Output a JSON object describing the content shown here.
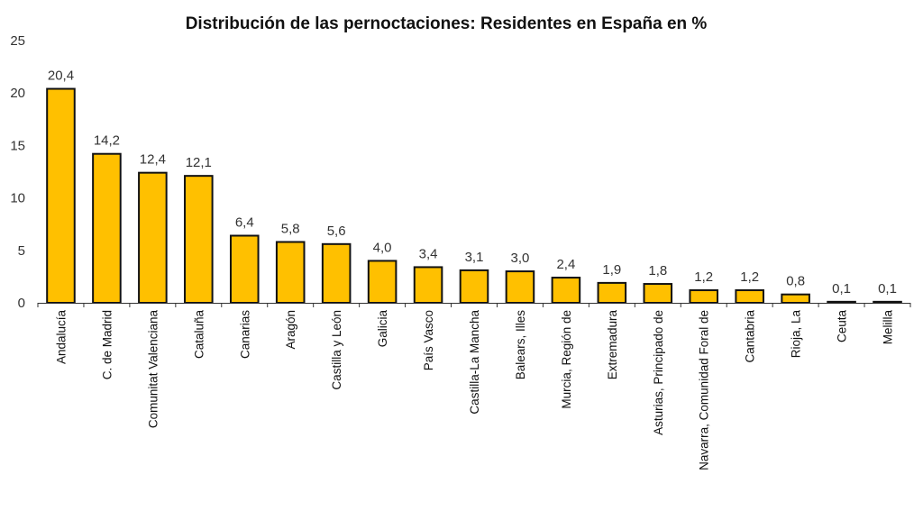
{
  "chart_data": {
    "type": "bar",
    "title": "Distribución de las pernoctaciones: Residentes en España en %",
    "xlabel": "",
    "ylabel": "",
    "ylim": [
      0,
      25
    ],
    "yticks": [
      0,
      5,
      10,
      15,
      20,
      25
    ],
    "grid": false,
    "legend": "none",
    "bar_color": "#FFC000",
    "bar_edge_color": "#111111",
    "decimal_separator": ",",
    "categories": [
      "Andalucía",
      "C. de Madrid",
      "Comunitat Valenciana",
      "Cataluña",
      "Canarias",
      "Aragón",
      "Castilla y León",
      "Galicia",
      "País Vasco",
      "Castilla-La Mancha",
      "Balears, Illes",
      "Murcia, Región de",
      "Extremadura",
      "Asturias, Principado de",
      "Navarra, Comunidad Foral de",
      "Cantabria",
      "Rioja, La",
      "Ceuta",
      "Melilla"
    ],
    "values": [
      20.4,
      14.2,
      12.4,
      12.1,
      6.4,
      5.8,
      5.6,
      4.0,
      3.4,
      3.1,
      3.0,
      2.4,
      1.9,
      1.8,
      1.2,
      1.2,
      0.8,
      0.1,
      0.1
    ],
    "data_labels": [
      "20,4",
      "14,2",
      "12,4",
      "12,1",
      "6,4",
      "5,8",
      "5,6",
      "4,0",
      "3,4",
      "3,1",
      "3,0",
      "2,4",
      "1,9",
      "1,8",
      "1,2",
      "1,2",
      "0,8",
      "0,1",
      "0,1"
    ]
  }
}
